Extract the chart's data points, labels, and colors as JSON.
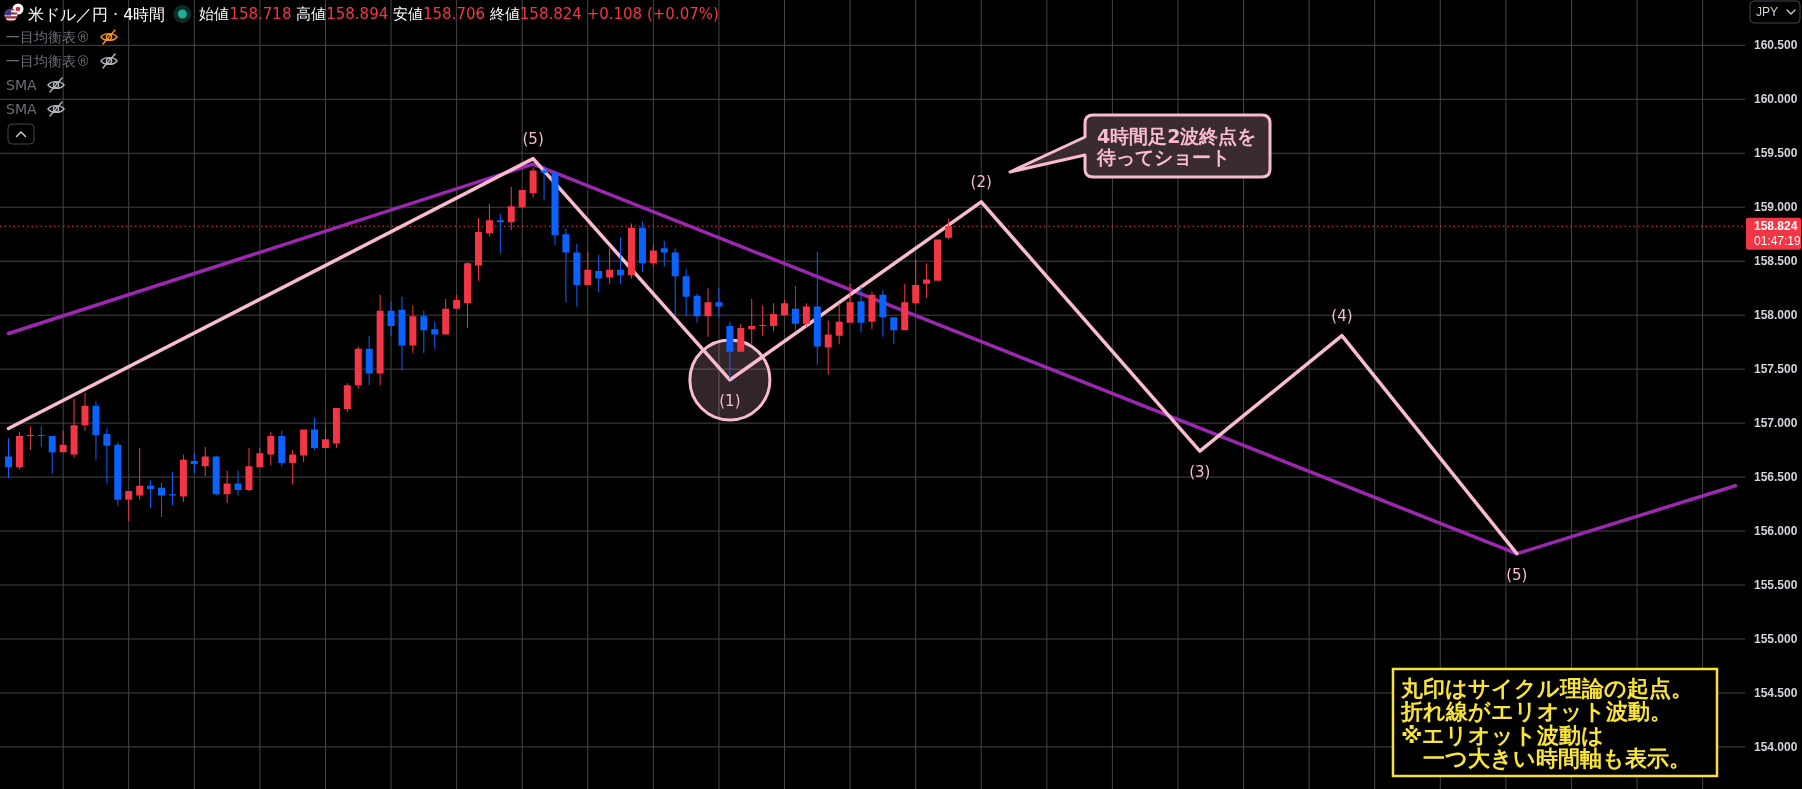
{
  "chart_data": {
    "type": "candlestick",
    "title": "米ドル／円 · 4時間",
    "subtitle": "始値158.718 高値158.894 安値158.706 終値158.824 +0.108 (+0.07%)",
    "ylabel": "JPY",
    "categories": [
      null,
      null,
      null,
      null,
      null,
      null,
      null,
      null,
      null,
      null,
      null,
      null,
      null,
      null,
      null,
      null,
      null,
      null,
      null,
      null,
      null,
      null,
      null,
      null,
      null,
      null,
      null,
      null,
      null,
      null,
      null,
      null,
      null,
      null,
      null,
      null,
      null,
      null,
      null,
      null,
      null,
      null,
      null,
      null,
      null,
      null,
      null,
      null,
      null,
      null,
      null,
      null,
      null,
      null,
      null,
      null,
      null,
      null,
      null,
      null,
      null,
      null,
      null,
      null,
      null,
      null,
      null,
      null,
      null,
      null,
      null,
      null,
      null,
      null,
      null,
      null,
      null,
      null,
      null,
      null,
      null,
      null,
      null,
      null,
      null,
      null,
      null,
      null,
      null,
      null,
      null,
      null,
      null,
      null,
      null,
      null,
      null,
      null,
      null,
      null,
      null,
      null,
      null,
      null,
      null,
      null,
      null,
      null,
      null,
      null,
      null,
      null,
      null,
      null,
      null,
      null,
      null,
      null,
      null,
      null,
      null,
      null,
      null,
      null,
      null,
      null,
      null,
      null,
      null,
      null,
      null,
      null,
      null,
      null,
      null,
      null,
      null,
      null,
      null,
      null,
      null,
      null,
      null,
      null,
      null,
      null,
      null,
      null,
      null,
      null,
      null,
      null,
      null,
      null,
      null,
      null,
      null,
      null,
      null
    ],
    "ohlc": [
      [
        156.69,
        156.86,
        156.49,
        156.59
      ],
      [
        156.59,
        156.92,
        156.57,
        156.88
      ],
      [
        156.88,
        156.97,
        156.75,
        156.89
      ],
      [
        156.89,
        156.97,
        156.78,
        156.88
      ],
      [
        156.88,
        156.88,
        156.53,
        156.73
      ],
      [
        156.73,
        156.93,
        156.73,
        156.8
      ],
      [
        156.71,
        157.22,
        156.68,
        156.98
      ],
      [
        156.98,
        157.28,
        156.93,
        157.16
      ],
      [
        157.16,
        157.2,
        156.66,
        156.89
      ],
      [
        156.9,
        156.95,
        156.44,
        156.79
      ],
      [
        156.8,
        156.82,
        156.23,
        156.29
      ],
      [
        156.29,
        156.37,
        156.09,
        156.37
      ],
      [
        156.33,
        156.77,
        156.29,
        156.42
      ],
      [
        156.42,
        156.47,
        156.21,
        156.39
      ],
      [
        156.4,
        156.45,
        156.13,
        156.33
      ],
      [
        156.34,
        156.55,
        156.24,
        156.33
      ],
      [
        156.32,
        156.71,
        156.27,
        156.66
      ],
      [
        156.65,
        156.72,
        156.54,
        156.62
      ],
      [
        156.6,
        156.78,
        156.51,
        156.69
      ],
      [
        156.69,
        156.7,
        156.33,
        156.34
      ],
      [
        156.34,
        156.56,
        156.26,
        156.44
      ],
      [
        156.44,
        156.56,
        156.33,
        156.38
      ],
      [
        156.38,
        156.77,
        156.37,
        156.6
      ],
      [
        156.59,
        156.77,
        156.59,
        156.72
      ],
      [
        156.71,
        156.92,
        156.61,
        156.88
      ],
      [
        156.88,
        156.93,
        156.6,
        156.63
      ],
      [
        156.63,
        156.75,
        156.43,
        156.71
      ],
      [
        156.7,
        156.94,
        156.64,
        156.94
      ],
      [
        156.94,
        157.05,
        156.75,
        156.77
      ],
      [
        156.77,
        156.96,
        156.77,
        156.85
      ],
      [
        156.81,
        157.14,
        156.77,
        157.14
      ],
      [
        157.13,
        157.37,
        157.1,
        157.35
      ],
      [
        157.35,
        157.71,
        157.32,
        157.69
      ],
      [
        157.69,
        157.81,
        157.35,
        157.46
      ],
      [
        157.46,
        158.19,
        157.35,
        158.04
      ],
      [
        158.04,
        158.13,
        157.81,
        157.9
      ],
      [
        158.05,
        158.17,
        157.49,
        157.72
      ],
      [
        157.72,
        158.09,
        157.65,
        157.99
      ],
      [
        157.99,
        158.04,
        157.65,
        157.86
      ],
      [
        157.87,
        157.94,
        157.69,
        157.82
      ],
      [
        157.82,
        158.15,
        157.82,
        158.06
      ],
      [
        158.06,
        158.19,
        158.06,
        158.14
      ],
      [
        158.11,
        158.49,
        157.88,
        158.48
      ],
      [
        158.46,
        158.9,
        158.32,
        158.77
      ],
      [
        158.76,
        159.03,
        158.73,
        158.88
      ],
      [
        158.88,
        158.94,
        158.57,
        158.86
      ],
      [
        158.86,
        159.19,
        158.79,
        159.01
      ],
      [
        159.0,
        159.16,
        158.99,
        159.16
      ],
      [
        159.13,
        159.37,
        159.09,
        159.34
      ],
      [
        159.34,
        159.39,
        159.07,
        159.32
      ],
      [
        159.32,
        159.34,
        158.65,
        158.74
      ],
      [
        158.75,
        158.8,
        158.12,
        158.58
      ],
      [
        158.58,
        158.66,
        158.08,
        158.28
      ],
      [
        158.28,
        158.59,
        158.28,
        158.42
      ],
      [
        158.41,
        158.56,
        158.21,
        158.34
      ],
      [
        158.35,
        158.62,
        158.29,
        158.42
      ],
      [
        158.42,
        158.72,
        158.29,
        158.37
      ],
      [
        158.37,
        158.85,
        158.34,
        158.81
      ],
      [
        158.81,
        158.87,
        158.4,
        158.48
      ],
      [
        158.48,
        158.66,
        158.45,
        158.6
      ],
      [
        158.62,
        158.69,
        158.45,
        158.58
      ],
      [
        158.58,
        158.62,
        158.0,
        158.36
      ],
      [
        158.36,
        158.43,
        157.99,
        158.17
      ],
      [
        158.18,
        158.2,
        157.93,
        157.99
      ],
      [
        157.99,
        158.25,
        157.8,
        158.12
      ],
      [
        158.12,
        158.25,
        157.98,
        158.08
      ],
      [
        157.9,
        157.94,
        157.41,
        157.66
      ],
      [
        157.66,
        157.92,
        157.66,
        157.88
      ],
      [
        157.87,
        158.15,
        157.73,
        157.9
      ],
      [
        157.9,
        158.09,
        157.81,
        157.91
      ],
      [
        157.9,
        158.11,
        157.85,
        158.01
      ],
      [
        158.0,
        158.14,
        158.0,
        158.11
      ],
      [
        158.06,
        158.27,
        157.86,
        157.92
      ],
      [
        157.92,
        158.11,
        157.89,
        158.08
      ],
      [
        158.08,
        158.59,
        157.54,
        157.71
      ],
      [
        157.7,
        157.95,
        157.45,
        157.82
      ],
      [
        157.81,
        158.11,
        157.73,
        157.94
      ],
      [
        157.93,
        158.29,
        157.93,
        158.12
      ],
      [
        158.13,
        158.26,
        157.84,
        157.93
      ],
      [
        157.94,
        158.22,
        157.87,
        158.19
      ],
      [
        158.19,
        158.23,
        157.8,
        157.98
      ],
      [
        157.98,
        157.98,
        157.73,
        157.86
      ],
      [
        157.86,
        158.29,
        157.86,
        158.12
      ],
      [
        158.11,
        158.52,
        158.1,
        158.28
      ],
      [
        158.29,
        158.48,
        158.16,
        158.33
      ],
      [
        158.32,
        158.7,
        158.32,
        158.7
      ],
      [
        158.718,
        158.894,
        158.706,
        158.824
      ],
      null,
      null,
      null,
      null,
      null,
      null,
      null,
      null,
      null,
      null,
      null,
      null,
      null,
      null,
      null,
      null,
      null,
      null,
      null,
      null,
      null,
      null,
      null,
      null,
      null,
      null,
      null,
      null,
      null,
      null,
      null,
      null,
      null,
      null,
      null,
      null,
      null,
      null,
      null,
      null,
      null,
      null,
      null,
      null,
      null,
      null,
      null,
      null,
      null,
      null,
      null,
      null,
      null,
      null,
      null,
      null,
      null,
      null,
      null,
      null,
      null,
      null,
      null,
      null,
      null,
      null,
      null,
      null,
      null,
      null,
      null,
      null
    ],
    "colors": [
      "#0a63ff",
      "#f23645",
      "#f23645",
      "#0a63ff",
      "#0a63ff",
      "#f23645",
      "#f23645",
      "#f23645",
      "#0a63ff",
      "#0a63ff",
      "#0a63ff",
      "#f23645",
      "#f23645",
      "#0a63ff",
      "#0a63ff",
      "#0a63ff",
      "#f23645",
      "#0a63ff",
      "#f23645",
      "#0a63ff",
      "#f23645",
      "#0a63ff",
      "#f23645",
      "#f23645",
      "#f23645",
      "#0a63ff",
      "#f23645",
      "#f23645",
      "#0a63ff",
      "#f23645",
      "#f23645",
      "#f23645",
      "#f23645",
      "#0a63ff",
      "#f23645",
      "#0a63ff",
      "#0a63ff",
      "#f23645",
      "#0a63ff",
      "#0a63ff",
      "#f23645",
      "#f23645",
      "#f23645",
      "#f23645",
      "#f23645",
      "#0a63ff",
      "#f23645",
      "#f23645",
      "#f23645",
      "#0a63ff",
      "#0a63ff",
      "#0a63ff",
      "#0a63ff",
      "#f23645",
      "#0a63ff",
      "#f23645",
      "#0a63ff",
      "#f23645",
      "#0a63ff",
      "#f23645",
      "#0a63ff",
      "#0a63ff",
      "#0a63ff",
      "#0a63ff",
      "#f23645",
      "#0a63ff",
      "#0a63ff",
      "#f23645",
      "#f23645",
      "#f23645",
      "#f23645",
      "#f23645",
      "#0a63ff",
      "#f23645",
      "#0a63ff",
      "#f23645",
      "#f23645",
      "#f23645",
      "#0a63ff",
      "#f23645",
      "#0a63ff",
      "#0a63ff",
      "#f23645",
      "#f23645",
      "#f23645",
      "#f23645",
      "#f23645",
      null,
      null,
      null,
      null,
      null,
      null,
      null,
      null,
      null,
      null,
      null,
      null,
      null,
      null,
      null,
      null,
      null,
      null,
      null,
      null,
      null,
      null,
      null,
      null,
      null,
      null,
      null,
      null,
      null,
      null,
      null,
      null,
      null,
      null,
      null,
      null,
      null,
      null,
      null,
      null,
      null,
      null,
      null,
      null,
      null,
      null,
      null,
      null,
      null,
      null,
      null,
      null,
      null,
      null,
      null,
      null,
      null,
      null,
      null,
      null,
      null,
      null,
      null,
      null,
      null,
      null,
      null,
      null,
      null,
      null,
      null,
      null
    ],
    "series": [
      {
        "type": "scatter",
        "marker": "circle",
        "color": "#f8bbd0",
        "values": [
          null,
          null,
          null,
          null,
          null,
          null,
          null,
          null,
          null,
          null,
          null,
          null,
          null,
          null,
          null,
          null,
          null,
          null,
          null,
          null,
          null,
          null,
          null,
          null,
          null,
          null,
          null,
          null,
          null,
          null,
          null,
          null,
          null,
          null,
          null,
          null,
          null,
          null,
          null,
          null,
          null,
          null,
          null,
          null,
          null,
          null,
          null,
          null,
          null,
          null,
          null,
          null,
          null,
          null,
          null,
          null,
          null,
          null,
          null,
          null,
          null,
          null,
          null,
          null,
          null,
          null,
          157.4,
          null,
          null,
          null,
          null,
          null,
          null,
          null,
          null,
          null,
          null,
          null,
          null,
          null,
          null,
          null,
          null,
          null,
          null,
          null,
          null,
          null,
          null,
          null,
          null,
          null,
          null,
          null,
          null,
          null,
          null,
          null,
          null,
          null,
          null,
          null,
          null,
          null,
          null,
          null,
          null,
          null,
          null,
          null,
          null,
          null,
          null,
          null,
          null,
          null,
          null,
          null,
          null,
          null,
          null,
          null,
          null,
          null,
          null,
          null,
          null,
          null,
          null,
          null,
          null,
          null,
          null,
          null,
          null,
          null,
          null,
          null,
          null,
          null,
          null,
          null,
          null,
          null,
          null,
          null,
          null,
          null,
          null,
          null,
          null,
          null,
          null,
          null,
          null,
          null,
          null,
          null,
          null
        ]
      },
      {
        "type": "line",
        "color": "#9c27b0",
        "values": [
          157.83,
          null,
          null,
          null,
          null,
          null,
          null,
          null,
          null,
          null,
          null,
          null,
          null,
          null,
          null,
          null,
          null,
          null,
          null,
          null,
          null,
          null,
          null,
          null,
          null,
          null,
          null,
          null,
          null,
          null,
          null,
          null,
          null,
          null,
          null,
          null,
          null,
          null,
          null,
          null,
          null,
          null,
          null,
          null,
          null,
          null,
          null,
          null,
          159.4,
          null,
          null,
          null,
          null,
          null,
          null,
          null,
          null,
          null,
          null,
          null,
          null,
          null,
          null,
          null,
          null,
          null,
          null,
          null,
          null,
          null,
          null,
          null,
          null,
          null,
          null,
          null,
          null,
          null,
          null,
          null,
          null,
          null,
          null,
          null,
          null,
          null,
          null,
          null,
          null,
          null,
          null,
          null,
          null,
          null,
          null,
          null,
          null,
          null,
          null,
          null,
          null,
          null,
          null,
          null,
          null,
          null,
          null,
          null,
          null,
          null,
          null,
          null,
          null,
          null,
          null,
          null,
          null,
          null,
          null,
          null,
          null,
          null,
          null,
          null,
          null,
          null,
          null,
          null,
          null,
          null,
          null,
          null,
          null,
          null,
          null,
          null,
          null,
          null,
          155.79,
          null,
          null,
          null,
          null,
          null,
          null,
          null,
          null,
          null,
          null,
          null,
          null,
          null,
          null,
          null,
          null,
          null,
          null,
          null,
          156.42
        ]
      },
      {
        "type": "line",
        "color": "#f8bbd0",
        "values": [
          156.95,
          null,
          null,
          null,
          null,
          null,
          null,
          null,
          null,
          null,
          null,
          null,
          null,
          null,
          null,
          null,
          null,
          null,
          null,
          null,
          null,
          null,
          null,
          null,
          null,
          null,
          null,
          null,
          null,
          null,
          null,
          null,
          null,
          null,
          null,
          null,
          null,
          null,
          null,
          null,
          null,
          null,
          null,
          null,
          null,
          null,
          null,
          null,
          159.45,
          null,
          null,
          null,
          null,
          null,
          null,
          null,
          null,
          null,
          null,
          null,
          null,
          null,
          null,
          null,
          null,
          null,
          157.4,
          null,
          null,
          null,
          null,
          null,
          null,
          null,
          null,
          null,
          null,
          null,
          null,
          null,
          null,
          null,
          null,
          null,
          null,
          null,
          null,
          null,
          null,
          159.05,
          null,
          null,
          null,
          null,
          null,
          null,
          null,
          null,
          null,
          null,
          null,
          null,
          null,
          null,
          null,
          null,
          null,
          null,
          null,
          156.74,
          null,
          null,
          null,
          null,
          null,
          null,
          null,
          null,
          null,
          null,
          null,
          null,
          157.81,
          null,
          null,
          null,
          null,
          null,
          null,
          null,
          null,
          null,
          null,
          null,
          null,
          null,
          null,
          null,
          155.79,
          null,
          null,
          null,
          null,
          null,
          null,
          null,
          null,
          null,
          null,
          null,
          null,
          null,
          null,
          null,
          null,
          null,
          null,
          null,
          null
        ]
      }
    ],
    "ylim": [
      153.61,
      160.92
    ],
    "yticks": [
      {
        "value": 154,
        "label": "154.000"
      },
      {
        "value": 154.5,
        "label": "154.500"
      },
      {
        "value": 155,
        "label": "155.000"
      },
      {
        "value": 155.5,
        "label": "155.500"
      },
      {
        "value": 156,
        "label": "156.000"
      },
      {
        "value": 156.5,
        "label": "156.500"
      },
      {
        "value": 157,
        "label": "157.000"
      },
      {
        "value": 157.5,
        "label": "157.500"
      },
      {
        "value": 158,
        "label": "158.000"
      },
      {
        "value": 158.5,
        "label": "158.500"
      },
      {
        "value": 159,
        "label": "159.000"
      },
      {
        "value": 159.5,
        "label": "159.500"
      },
      {
        "value": 160,
        "label": "160.000"
      },
      {
        "value": 160.5,
        "label": "160.500"
      }
    ],
    "tick_labels": "y",
    "grid": true,
    "ref_lines": [
      {
        "axis": "y",
        "value": 158.824,
        "label": "158.824\n01:47:19",
        "color": "#f23645",
        "line_style": "dotted"
      }
    ],
    "annotations": [
      "一目均衡表®",
      "一目均衡表®",
      "SMA",
      "SMA",
      "4時間足2波終点を待ってショート",
      "丸印はサイクル理論の起点。折れ線がエリオット波動。※エリオット波動は一つ大きい時間軸も表示。",
      "(5)",
      "(1)",
      "(2)",
      "(3)",
      "(4)",
      "(5)"
    ]
  }
}
